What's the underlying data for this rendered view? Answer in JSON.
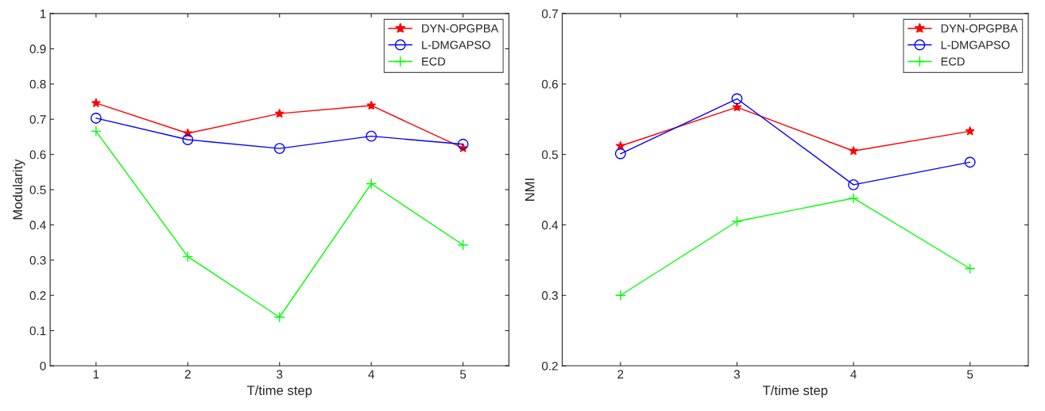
{
  "chart_data": [
    {
      "type": "line",
      "xlabel": "T/time step",
      "ylabel": "Modularity",
      "x": [
        1,
        2,
        3,
        4,
        5
      ],
      "xlim": [
        0.5,
        5.5
      ],
      "xticks": [
        1,
        2,
        3,
        4,
        5
      ],
      "ylim": [
        0,
        1
      ],
      "yticks": [
        0,
        0.1,
        0.2,
        0.3,
        0.4,
        0.5,
        0.6,
        0.7,
        0.8,
        0.9,
        1
      ],
      "grid": false,
      "legend": "top right",
      "series": [
        {
          "name": "DYN-OPGPBA",
          "color": "#ff0000",
          "marker": "star",
          "values": [
            0.746,
            0.66,
            0.716,
            0.739,
            0.618
          ]
        },
        {
          "name": "L-DMGAPSO",
          "color": "#0000ff",
          "marker": "circle",
          "values": [
            0.703,
            0.642,
            0.617,
            0.652,
            0.629
          ]
        },
        {
          "name": "ECD",
          "color": "#00ff00",
          "marker": "cross",
          "values": [
            0.666,
            0.31,
            0.138,
            0.517,
            0.343
          ]
        }
      ]
    },
    {
      "type": "line",
      "xlabel": "T/time step",
      "ylabel": "NMI",
      "x": [
        2,
        3,
        4,
        5
      ],
      "xlim": [
        1.5,
        5.5
      ],
      "xticks": [
        2,
        3,
        4,
        5
      ],
      "ylim": [
        0.2,
        0.7
      ],
      "yticks": [
        0.2,
        0.3,
        0.4,
        0.5,
        0.6,
        0.7
      ],
      "grid": false,
      "legend": "top right",
      "series": [
        {
          "name": "DYN-OPGPBA",
          "color": "#ff0000",
          "marker": "star",
          "values": [
            0.512,
            0.567,
            0.505,
            0.533
          ]
        },
        {
          "name": "L-DMGAPSO",
          "color": "#0000ff",
          "marker": "circle",
          "values": [
            0.501,
            0.579,
            0.457,
            0.489
          ]
        },
        {
          "name": "ECD",
          "color": "#00ff00",
          "marker": "cross",
          "values": [
            0.3,
            0.405,
            0.438,
            0.338
          ]
        }
      ]
    }
  ]
}
